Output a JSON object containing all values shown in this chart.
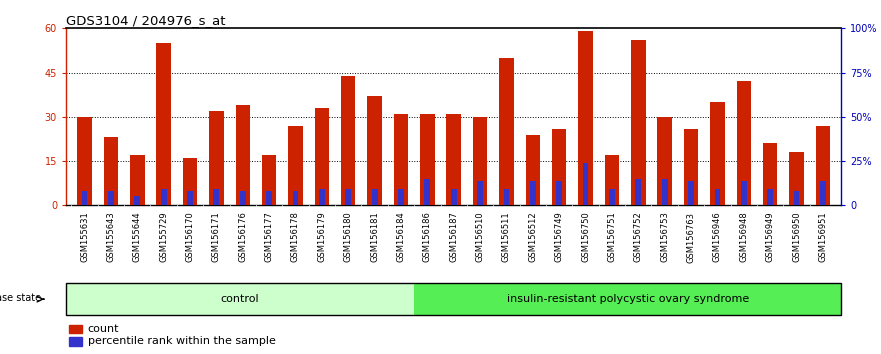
{
  "title": "GDS3104 / 204976_s_at",
  "samples": [
    "GSM155631",
    "GSM155643",
    "GSM155644",
    "GSM155729",
    "GSM156170",
    "GSM156171",
    "GSM156176",
    "GSM156177",
    "GSM156178",
    "GSM156179",
    "GSM156180",
    "GSM156181",
    "GSM156184",
    "GSM156186",
    "GSM156187",
    "GSM156510",
    "GSM156511",
    "GSM156512",
    "GSM156749",
    "GSM156750",
    "GSM156751",
    "GSM156752",
    "GSM156753",
    "GSM156763",
    "GSM156946",
    "GSM156948",
    "GSM156949",
    "GSM156950",
    "GSM156951"
  ],
  "count_values": [
    30,
    23,
    17,
    55,
    16,
    32,
    34,
    17,
    27,
    33,
    44,
    37,
    31,
    31,
    31,
    30,
    50,
    24,
    26,
    59,
    17,
    56,
    30,
    26,
    35,
    42,
    21,
    18,
    27
  ],
  "percentile_values": [
    8,
    8,
    5,
    9,
    8,
    9,
    8,
    8,
    8,
    9,
    9,
    9,
    9,
    15,
    9,
    14,
    9,
    14,
    14,
    24,
    9,
    15,
    15,
    14,
    9,
    14,
    9,
    8,
    14
  ],
  "n_control": 13,
  "group_labels": [
    "control",
    "insulin-resistant polycystic ovary syndrome"
  ],
  "bar_color": "#cc2200",
  "percentile_color": "#3333cc",
  "bg_color_control": "#ccffcc",
  "bg_color_disease": "#55ee55",
  "xticklabel_bg": "#d0d0d0",
  "ylim_left": [
    0,
    60
  ],
  "ylim_right": [
    0,
    100
  ],
  "yticks_left": [
    0,
    15,
    30,
    45,
    60
  ],
  "ytick_labels_left": [
    "0",
    "15",
    "30",
    "45",
    "60"
  ],
  "yticks_right": [
    0,
    25,
    50,
    75,
    100
  ],
  "ytick_labels_right": [
    "0",
    "25%",
    "50%",
    "75%",
    "100%"
  ],
  "bar_width": 0.55,
  "title_fontsize": 9.5,
  "tick_fontsize": 7,
  "legend_count_label": "count",
  "legend_percentile_label": "percentile rank within the sample"
}
